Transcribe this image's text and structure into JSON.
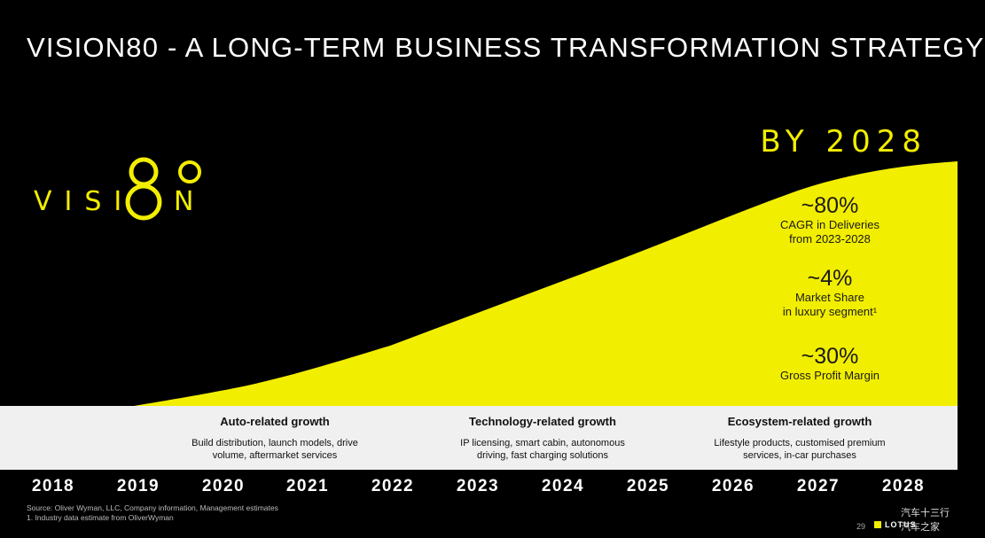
{
  "title": "VISION80 - A LONG-TERM BUSINESS TRANSFORMATION STRATEGY",
  "logo": {
    "left": "VISI",
    "digits": "8",
    "o": "O",
    "right": "N"
  },
  "headline": "BY 2028",
  "stats": [
    {
      "value": "~80%",
      "line1": "CAGR in Deliveries",
      "line2": "from 2023-2028"
    },
    {
      "value": "~4%",
      "line1": "Market Share",
      "line2": "in luxury segment¹"
    },
    {
      "value": "~30%",
      "line1": "Gross Profit Margin",
      "line2": ""
    }
  ],
  "growth": [
    {
      "title": "Auto-related growth",
      "line1": "Build distribution, launch models, drive",
      "line2": "volume, aftermarket services"
    },
    {
      "title": "Technology-related growth",
      "line1": "IP licensing, smart cabin, autonomous",
      "line2": "driving, fast charging solutions"
    },
    {
      "title": "Ecosystem-related growth",
      "line1": "Lifestyle products, customised premium",
      "line2": "services, in-car purchases"
    }
  ],
  "years": [
    "2018",
    "2019",
    "2020",
    "2021",
    "2022",
    "2023",
    "2024",
    "2025",
    "2026",
    "2027",
    "2028"
  ],
  "source_line1": "Source: Oliver Wyman, LLC, Company information, Management estimates",
  "source_line2": "1. Industry data estimate from OliverWyman",
  "page_number": "29",
  "brand": "LOTUS",
  "watermark_line1": "汽车十三行",
  "watermark_line2": "汽车之家",
  "colors": {
    "accent": "#f2ee00",
    "band": "#f0f0f0",
    "background": "#000000"
  }
}
